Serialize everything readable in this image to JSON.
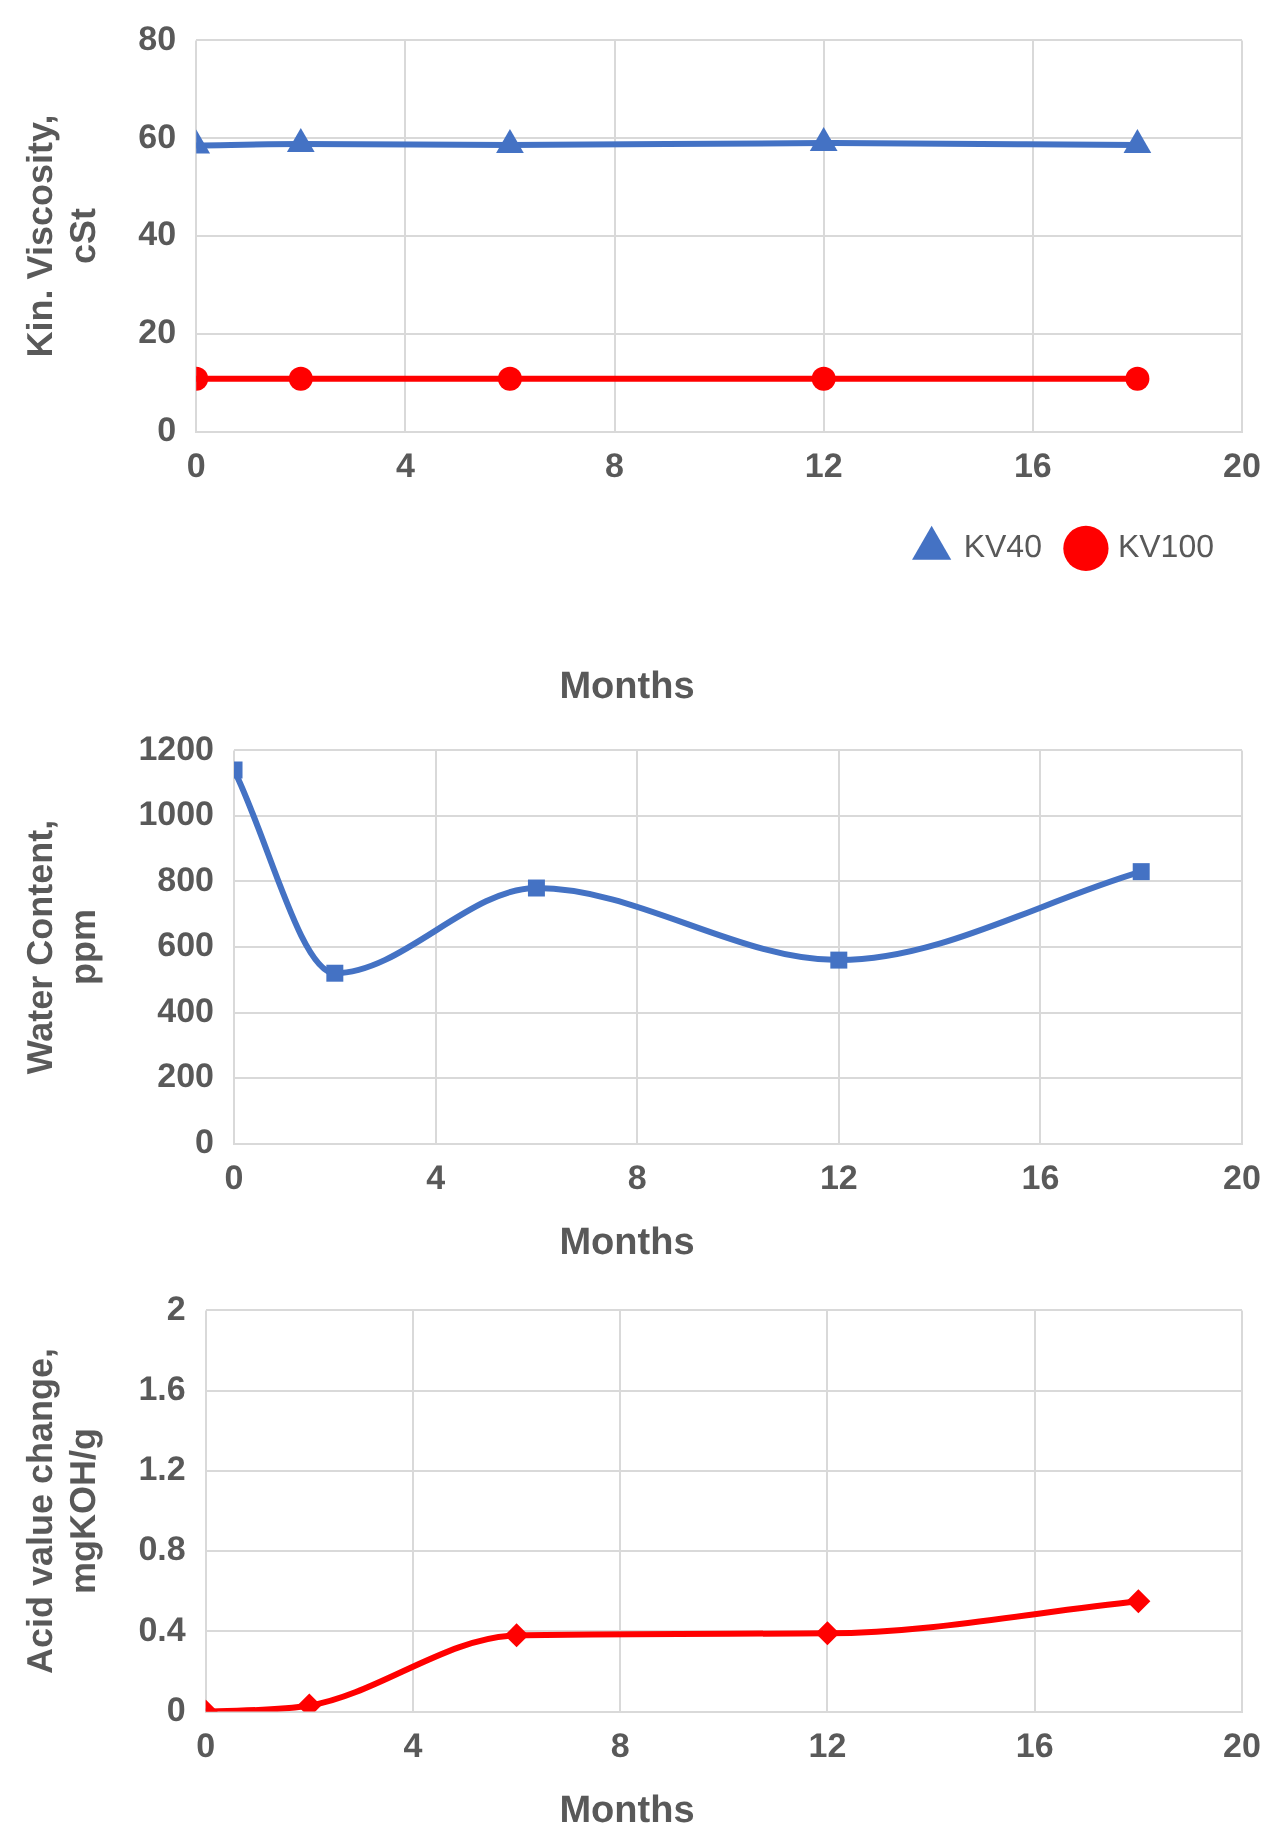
{
  "chart_data": [
    {
      "type": "line",
      "x": [
        0,
        2,
        6,
        12,
        18
      ],
      "xlabel": "Months",
      "ylabel": "Kin. Viscosity, cSt",
      "xlim": [
        0,
        20
      ],
      "xticks": [
        0,
        4,
        8,
        12,
        16,
        20
      ],
      "ylim": [
        0,
        80
      ],
      "yticks": [
        0,
        20,
        40,
        60,
        80
      ],
      "grid": true,
      "legend": "bottom right",
      "series": [
        {
          "name": "KV40",
          "color": "#4472c4",
          "marker": "triangle",
          "values": [
            58.5,
            58.8,
            58.6,
            59,
            58.6
          ]
        },
        {
          "name": "KV100",
          "color": "#ff0000",
          "marker": "circle",
          "values": [
            10.8,
            10.8,
            10.8,
            10.8,
            10.8
          ]
        }
      ]
    },
    {
      "type": "line",
      "x": [
        0,
        2,
        6,
        12,
        18
      ],
      "xlabel": "Months",
      "ylabel": "Water Content, ppm",
      "xlim": [
        0,
        20
      ],
      "xticks": [
        0,
        4,
        8,
        12,
        16,
        20
      ],
      "ylim": [
        0,
        1200
      ],
      "yticks": [
        0,
        200,
        400,
        600,
        800,
        1000,
        1200
      ],
      "grid": true,
      "marker": "square",
      "series": [
        {
          "color": "#4472c4",
          "values": [
            1140,
            520,
            780,
            560,
            830
          ]
        }
      ]
    },
    {
      "type": "line",
      "x": [
        0,
        2,
        6,
        12,
        18
      ],
      "xlabel": "Months",
      "ylabel": "Acid value change, mgKOH/g",
      "xlim": [
        0,
        20
      ],
      "xticks": [
        0,
        4,
        8,
        12,
        16,
        20
      ],
      "ylim": [
        0,
        2
      ],
      "yticks": [
        0,
        0.4,
        0.8,
        1.2,
        1.6,
        2
      ],
      "grid": true,
      "marker": "diamond",
      "series": [
        {
          "color": "#ff0000",
          "values": [
            0,
            0.03,
            0.38,
            0.39,
            0.55
          ]
        }
      ]
    }
  ]
}
